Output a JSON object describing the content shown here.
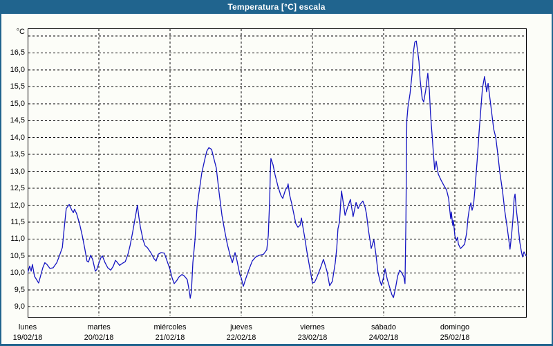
{
  "title": "Temperatura [°C] escala",
  "colors": {
    "titlebar": "#20648e",
    "outer_border": "#20648e",
    "plot_border": "#000000",
    "gridline": "#000000",
    "line": "#1515c2",
    "background": "#fcfdf8"
  },
  "chart_data": {
    "type": "line",
    "title": "Temperatura [°C] escala",
    "grid": "dashed",
    "legend": "none",
    "y_axis": {
      "unit": "°C",
      "min": 9.0,
      "max": 17.0,
      "step": 0.5,
      "label_max": 16.5,
      "tick_labels": [
        "16,5",
        "16,0",
        "15,5",
        "15,0",
        "14,5",
        "14,0",
        "13,5",
        "13,0",
        "12,5",
        "12,0",
        "11,5",
        "11,0",
        "10,5",
        "10,0",
        "9,5",
        "9,0"
      ]
    },
    "x_axis": {
      "hours_total": 168,
      "days": [
        {
          "name": "lunes",
          "date": "19/02/18"
        },
        {
          "name": "martes",
          "date": "20/02/18"
        },
        {
          "name": "miércoles",
          "date": "21/02/18"
        },
        {
          "name": "jueves",
          "date": "22/02/18"
        },
        {
          "name": "viernes",
          "date": "23/02/18"
        },
        {
          "name": "sábado",
          "date": "24/02/18"
        },
        {
          "name": "domingo",
          "date": "25/02/18"
        }
      ]
    },
    "series": [
      {
        "name": "Temperatura",
        "color": "#1515c2",
        "points": [
          [
            0,
            10.0
          ],
          [
            0.7,
            10.2
          ],
          [
            1.2,
            10.05
          ],
          [
            1.6,
            10.25
          ],
          [
            2.3,
            9.9
          ],
          [
            3.7,
            9.7
          ],
          [
            5.1,
            10.15
          ],
          [
            5.8,
            10.3
          ],
          [
            6.5,
            10.25
          ],
          [
            7.5,
            10.13
          ],
          [
            8.6,
            10.15
          ],
          [
            9.8,
            10.3
          ],
          [
            10.7,
            10.5
          ],
          [
            11.7,
            10.75
          ],
          [
            12.3,
            11.3
          ],
          [
            13,
            11.9
          ],
          [
            14,
            12.02
          ],
          [
            14.9,
            11.85
          ],
          [
            15.4,
            11.78
          ],
          [
            15.8,
            11.88
          ],
          [
            16.5,
            11.75
          ],
          [
            17.5,
            11.45
          ],
          [
            18.4,
            11.1
          ],
          [
            19.3,
            10.7
          ],
          [
            20,
            10.35
          ],
          [
            20.5,
            10.32
          ],
          [
            21.2,
            10.52
          ],
          [
            21.9,
            10.4
          ],
          [
            22.8,
            10.05
          ],
          [
            23.3,
            10.1
          ],
          [
            24,
            10.28
          ],
          [
            24.7,
            10.45
          ],
          [
            25.2,
            10.5
          ],
          [
            26.1,
            10.3
          ],
          [
            27,
            10.15
          ],
          [
            28,
            10.08
          ],
          [
            28.9,
            10.2
          ],
          [
            29.6,
            10.37
          ],
          [
            30.3,
            10.3
          ],
          [
            31,
            10.22
          ],
          [
            31.9,
            10.28
          ],
          [
            32.9,
            10.33
          ],
          [
            33.8,
            10.55
          ],
          [
            34.5,
            10.8
          ],
          [
            35.4,
            11.2
          ],
          [
            36.1,
            11.55
          ],
          [
            36.6,
            11.8
          ],
          [
            37,
            12.0
          ],
          [
            37.5,
            11.65
          ],
          [
            38,
            11.35
          ],
          [
            38.9,
            10.98
          ],
          [
            39.6,
            10.8
          ],
          [
            40.3,
            10.75
          ],
          [
            41.5,
            10.6
          ],
          [
            42.6,
            10.42
          ],
          [
            43.3,
            10.35
          ],
          [
            44,
            10.55
          ],
          [
            45,
            10.6
          ],
          [
            46.1,
            10.58
          ],
          [
            47,
            10.35
          ],
          [
            48,
            10.1
          ],
          [
            48.7,
            9.85
          ],
          [
            49.4,
            9.68
          ],
          [
            50.3,
            9.78
          ],
          [
            51,
            9.88
          ],
          [
            52,
            9.95
          ],
          [
            52.9,
            9.9
          ],
          [
            53.8,
            9.8
          ],
          [
            54.5,
            9.45
          ],
          [
            54.8,
            9.25
          ],
          [
            55.2,
            9.45
          ],
          [
            55.7,
            10.3
          ],
          [
            56.4,
            10.95
          ],
          [
            57.1,
            11.95
          ],
          [
            57.8,
            12.4
          ],
          [
            58.7,
            12.95
          ],
          [
            59.7,
            13.35
          ],
          [
            60.4,
            13.6
          ],
          [
            61.1,
            13.7
          ],
          [
            62,
            13.65
          ],
          [
            62.7,
            13.4
          ],
          [
            63.6,
            13.1
          ],
          [
            64.5,
            12.4
          ],
          [
            65.5,
            11.7
          ],
          [
            66.4,
            11.25
          ],
          [
            67.3,
            10.85
          ],
          [
            68.3,
            10.5
          ],
          [
            69,
            10.3
          ],
          [
            69.9,
            10.6
          ],
          [
            70.6,
            10.35
          ],
          [
            71.5,
            9.95
          ],
          [
            72,
            9.85
          ],
          [
            72.7,
            9.6
          ],
          [
            73.6,
            9.85
          ],
          [
            74.6,
            10.1
          ],
          [
            75.7,
            10.35
          ],
          [
            76.9,
            10.47
          ],
          [
            78.1,
            10.52
          ],
          [
            79.5,
            10.55
          ],
          [
            80.6,
            10.68
          ],
          [
            81.1,
            11.1
          ],
          [
            81.6,
            12.2
          ],
          [
            81.8,
            13.0
          ],
          [
            82,
            13.38
          ],
          [
            82.7,
            13.2
          ],
          [
            83.4,
            12.9
          ],
          [
            84.4,
            12.55
          ],
          [
            85.3,
            12.3
          ],
          [
            86,
            12.2
          ],
          [
            86.9,
            12.45
          ],
          [
            87.6,
            12.55
          ],
          [
            87.8,
            12.63
          ],
          [
            88.3,
            12.3
          ],
          [
            89,
            12.05
          ],
          [
            89.7,
            11.75
          ],
          [
            90.4,
            11.45
          ],
          [
            91.1,
            11.35
          ],
          [
            91.8,
            11.4
          ],
          [
            92.3,
            11.62
          ],
          [
            92.7,
            11.4
          ],
          [
            93.4,
            11.05
          ],
          [
            94.1,
            10.65
          ],
          [
            95.1,
            10.15
          ],
          [
            96,
            9.7
          ],
          [
            96.7,
            9.72
          ],
          [
            97.4,
            9.85
          ],
          [
            98.6,
            10.12
          ],
          [
            99.7,
            10.4
          ],
          [
            100.9,
            10.05
          ],
          [
            101.8,
            9.62
          ],
          [
            102.7,
            9.75
          ],
          [
            103.7,
            10.3
          ],
          [
            104.2,
            10.74
          ],
          [
            104.6,
            11.3
          ],
          [
            105.1,
            11.5
          ],
          [
            105.6,
            12.17
          ],
          [
            105.8,
            12.42
          ],
          [
            106.5,
            12.0
          ],
          [
            107,
            11.7
          ],
          [
            107.9,
            11.95
          ],
          [
            108.8,
            12.17
          ],
          [
            109.7,
            11.66
          ],
          [
            110.7,
            12.08
          ],
          [
            111.4,
            11.9
          ],
          [
            112.1,
            12.03
          ],
          [
            113,
            12.12
          ],
          [
            113.7,
            11.95
          ],
          [
            114.2,
            11.75
          ],
          [
            114.9,
            11.25
          ],
          [
            115.6,
            10.85
          ],
          [
            115.8,
            10.72
          ],
          [
            116.7,
            10.98
          ],
          [
            117.4,
            10.55
          ],
          [
            118.1,
            10.02
          ],
          [
            118.8,
            9.75
          ],
          [
            119.3,
            9.63
          ],
          [
            120,
            9.88
          ],
          [
            120.5,
            10.12
          ],
          [
            121.2,
            9.82
          ],
          [
            122.1,
            9.55
          ],
          [
            122.8,
            9.35
          ],
          [
            123.3,
            9.27
          ],
          [
            124,
            9.55
          ],
          [
            124.7,
            9.9
          ],
          [
            125.4,
            10.08
          ],
          [
            126.1,
            10.0
          ],
          [
            126.8,
            9.88
          ],
          [
            127.2,
            9.68
          ],
          [
            127.5,
            11.5
          ],
          [
            127.8,
            14.5
          ],
          [
            128.2,
            14.9
          ],
          [
            128.9,
            15.3
          ],
          [
            129.6,
            15.9
          ],
          [
            130,
            16.5
          ],
          [
            130.5,
            16.82
          ],
          [
            131,
            16.85
          ],
          [
            131.4,
            16.6
          ],
          [
            131.9,
            16.25
          ],
          [
            132.3,
            15.7
          ],
          [
            133,
            15.15
          ],
          [
            133.5,
            15.05
          ],
          [
            134.2,
            15.4
          ],
          [
            134.9,
            15.9
          ],
          [
            135.4,
            15.4
          ],
          [
            135.8,
            14.7
          ],
          [
            136.3,
            14.1
          ],
          [
            136.8,
            13.5
          ],
          [
            137.2,
            13.05
          ],
          [
            137.7,
            13.3
          ],
          [
            138.4,
            12.92
          ],
          [
            139.3,
            12.75
          ],
          [
            140.2,
            12.6
          ],
          [
            141.2,
            12.45
          ],
          [
            141.9,
            12.2
          ],
          [
            142.3,
            11.85
          ],
          [
            142.6,
            11.6
          ],
          [
            142.8,
            11.8
          ],
          [
            143.3,
            11.4
          ],
          [
            143.5,
            11.55
          ],
          [
            144,
            11.1
          ],
          [
            144.5,
            10.95
          ],
          [
            144.9,
            11.05
          ],
          [
            145.2,
            10.85
          ],
          [
            145.9,
            10.72
          ],
          [
            146.6,
            10.78
          ],
          [
            147.3,
            10.85
          ],
          [
            148,
            11.2
          ],
          [
            148.4,
            11.6
          ],
          [
            148.9,
            11.9
          ],
          [
            149.4,
            12.07
          ],
          [
            149.8,
            11.85
          ],
          [
            150.3,
            12.0
          ],
          [
            150.8,
            12.5
          ],
          [
            151.5,
            13.3
          ],
          [
            152.2,
            14.2
          ],
          [
            152.9,
            15.0
          ],
          [
            153.3,
            15.45
          ],
          [
            154,
            15.8
          ],
          [
            154.5,
            15.5
          ],
          [
            154.7,
            15.35
          ],
          [
            155.2,
            15.6
          ],
          [
            155.9,
            15.1
          ],
          [
            156.6,
            14.6
          ],
          [
            157.1,
            14.25
          ],
          [
            157.8,
            14.0
          ],
          [
            158.5,
            13.5
          ],
          [
            159.2,
            12.95
          ],
          [
            160.1,
            12.4
          ],
          [
            160.8,
            11.85
          ],
          [
            161.7,
            11.3
          ],
          [
            162.6,
            10.7
          ],
          [
            163.1,
            11.1
          ],
          [
            163.6,
            11.6
          ],
          [
            164,
            12.2
          ],
          [
            164.3,
            12.33
          ],
          [
            164.7,
            11.9
          ],
          [
            165.2,
            11.5
          ],
          [
            165.9,
            10.9
          ],
          [
            166.4,
            10.65
          ],
          [
            166.8,
            10.47
          ],
          [
            167.3,
            10.62
          ],
          [
            168,
            10.5
          ]
        ]
      }
    ]
  }
}
